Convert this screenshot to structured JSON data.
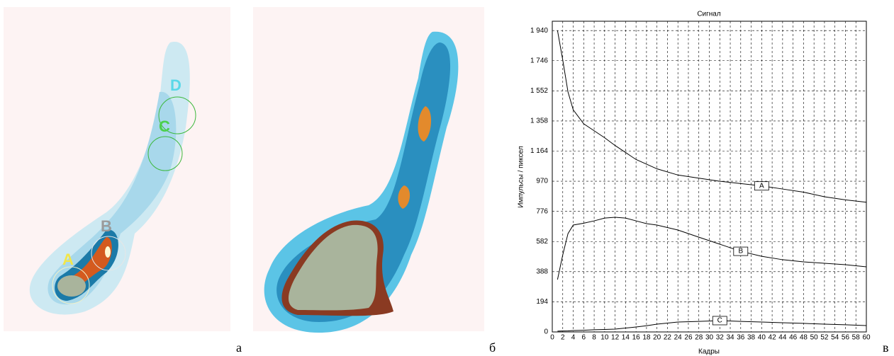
{
  "panel_labels": [
    "а",
    "б",
    "в"
  ],
  "regions": [
    "A",
    "B",
    "C",
    "D"
  ],
  "chart_data": {
    "type": "line",
    "title": "Сигнал",
    "x_label": "Кадры",
    "y_label": "Импульсы / пиксел",
    "x": [
      1,
      2,
      3,
      4,
      6,
      8,
      10,
      12,
      14,
      16,
      18,
      20,
      24,
      28,
      32,
      36,
      40,
      44,
      48,
      52,
      56,
      60
    ],
    "series": [
      {
        "name": "A",
        "color": "#000000",
        "values": [
          1940,
          1750,
          1545,
          1430,
          1340,
          1295,
          1250,
          1200,
          1155,
          1110,
          1080,
          1050,
          1010,
          990,
          970,
          955,
          940,
          920,
          900,
          870,
          850,
          835
        ]
      },
      {
        "name": "B",
        "color": "#000000",
        "values": [
          337,
          496,
          633,
          688,
          700,
          715,
          733,
          738,
          733,
          715,
          697,
          688,
          656,
          610,
          565,
          519,
          487,
          465,
          451,
          442,
          433,
          419
        ]
      },
      {
        "name": "C",
        "color": "#000000",
        "values": [
          5,
          6,
          7,
          9,
          11,
          14,
          16,
          18,
          25,
          32,
          40,
          50,
          64,
          68,
          73,
          68,
          64,
          59,
          55,
          50,
          46,
          41
        ]
      }
    ],
    "xlim": [
      0,
      60
    ],
    "xticks": [
      0,
      2,
      4,
      6,
      8,
      10,
      12,
      14,
      16,
      18,
      20,
      22,
      24,
      26,
      28,
      30,
      32,
      34,
      36,
      38,
      40,
      42,
      44,
      46,
      48,
      50,
      52,
      54,
      56,
      58,
      60
    ],
    "ylim": [
      0,
      2000
    ],
    "yticks": [
      0,
      194,
      388,
      582,
      776,
      970,
      {
        "value": 1164,
        "label": "1 164"
      },
      {
        "value": 1358,
        "label": "1 358"
      },
      {
        "value": 1552,
        "label": "1 552"
      },
      {
        "value": 1746,
        "label": "1 746"
      },
      {
        "value": 1940,
        "label": "1 940"
      }
    ],
    "grid": true
  }
}
